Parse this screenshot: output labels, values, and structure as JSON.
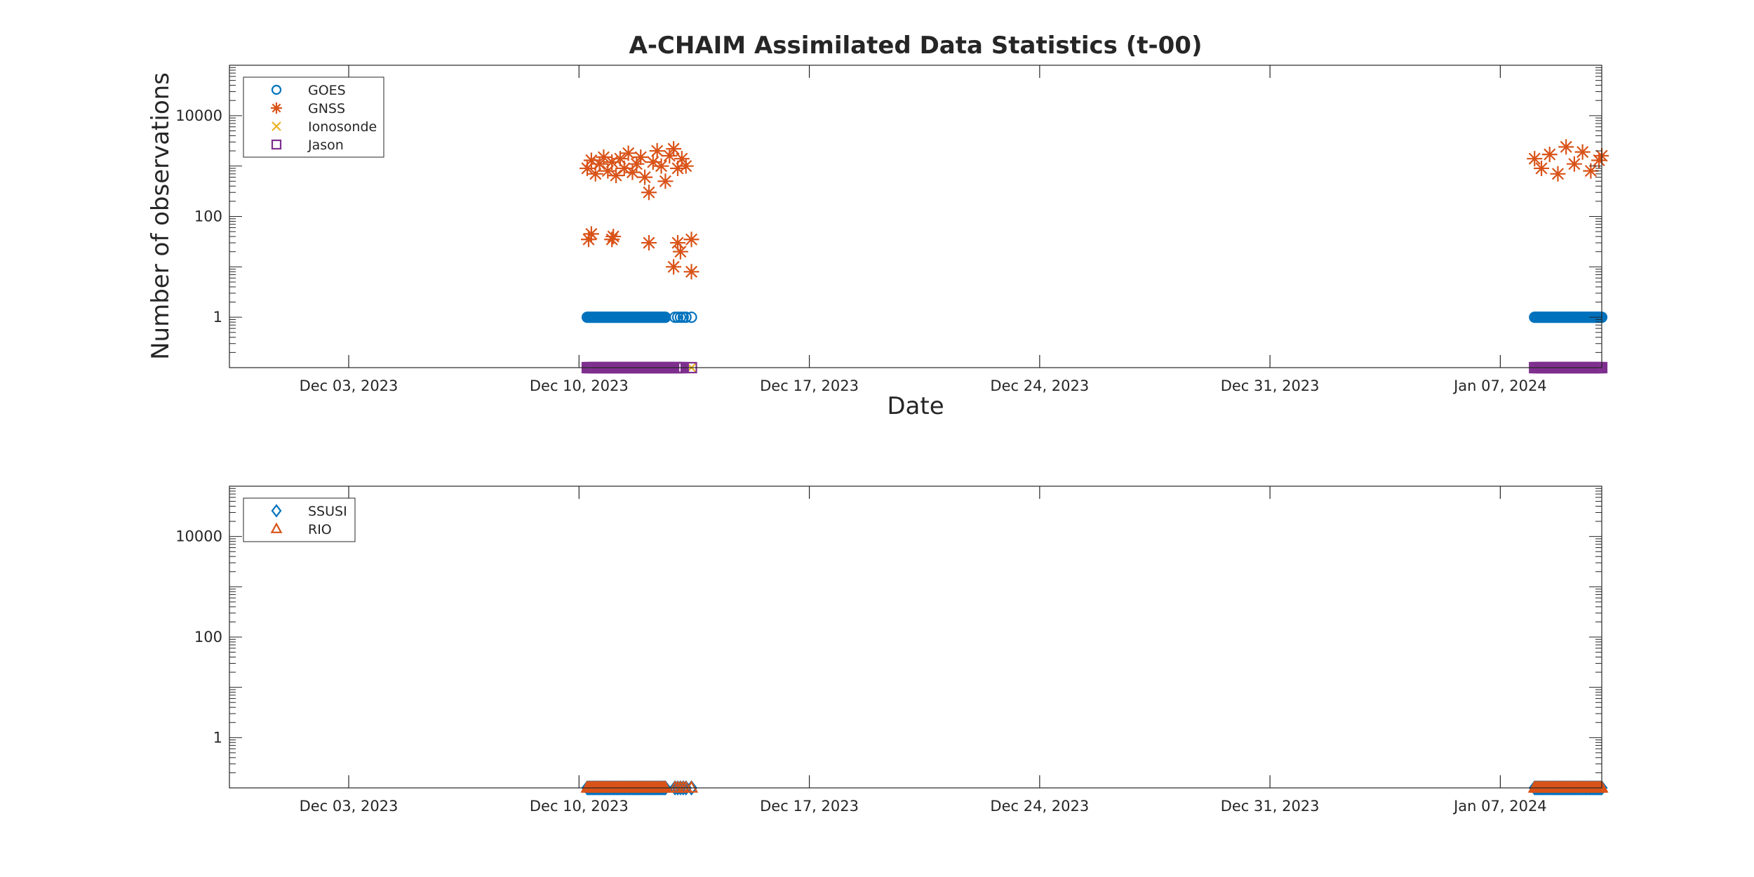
{
  "title": "A-CHAIM Assimilated Data Statistics (t-00)",
  "chart_data": [
    {
      "type": "scatter",
      "panel": "top",
      "xlabel": "Date",
      "ylabel": "Number of observations",
      "yscale": "log",
      "xlim": [
        "2023-11-29T09:00",
        "2024-01-10T02:00"
      ],
      "ylim": [
        0.1,
        100000
      ],
      "yticks": [
        1,
        100,
        10000
      ],
      "ytick_labels": [
        "1",
        "100",
        "10000"
      ],
      "xticks": [
        "2023-12-03",
        "2023-12-10",
        "2023-12-17",
        "2023-12-24",
        "2023-12-31",
        "2024-01-07"
      ],
      "xtick_labels": [
        "Dec 03, 2023",
        "Dec 10, 2023",
        "Dec 17, 2023",
        "Dec 24, 2023",
        "Dec 31, 2023",
        "Jan 07, 2024"
      ],
      "grid": false,
      "legend_position": "top-left",
      "x_range_note": "",
      "series": [
        {
          "name": "GOES",
          "marker": "circle",
          "color": "#0072BD",
          "segments": [
            {
              "start": "2023-12-10T06:00",
              "end": "2023-12-12T15:00",
              "step_hours": 1,
              "value": 1
            },
            {
              "start": "2023-12-12T22:00",
              "end": "2023-12-13T06:00",
              "step_hours": 2,
              "value": 1
            },
            {
              "start": "2023-12-13T10:00",
              "end": "2023-12-13T10:00",
              "step_hours": 1,
              "value": 1
            },
            {
              "start": "2024-01-08T01:00",
              "end": "2024-01-10T02:00",
              "step_hours": 1,
              "value": 1
            }
          ]
        },
        {
          "name": "GNSS",
          "marker": "asterisk",
          "color": "#D95319",
          "points": [
            [
              "2023-12-10T06:00",
              900
            ],
            [
              "2023-12-10T09:00",
              1300
            ],
            [
              "2023-12-10T12:00",
              700
            ],
            [
              "2023-12-10T15:00",
              1100
            ],
            [
              "2023-12-10T18:00",
              1500
            ],
            [
              "2023-12-10T21:00",
              800
            ],
            [
              "2023-12-11T00:00",
              1200
            ],
            [
              "2023-12-11T03:00",
              650
            ],
            [
              "2023-12-11T06:00",
              1400
            ],
            [
              "2023-12-11T09:00",
              900
            ],
            [
              "2023-12-11T12:00",
              1800
            ],
            [
              "2023-12-11T15:00",
              750
            ],
            [
              "2023-12-11T18:00",
              1100
            ],
            [
              "2023-12-11T21:00",
              1500
            ],
            [
              "2023-12-12T00:00",
              600
            ],
            [
              "2023-12-12T03:00",
              300
            ],
            [
              "2023-12-12T06:00",
              1200
            ],
            [
              "2023-12-12T09:00",
              2000
            ],
            [
              "2023-12-12T12:00",
              1000
            ],
            [
              "2023-12-12T15:00",
              500
            ],
            [
              "2023-12-12T18:00",
              1600
            ],
            [
              "2023-12-12T21:00",
              2200
            ],
            [
              "2023-12-13T00:00",
              900
            ],
            [
              "2023-12-13T03:00",
              1400
            ],
            [
              "2023-12-13T06:00",
              1000
            ],
            [
              "2023-12-10T07:00",
              35
            ],
            [
              "2023-12-10T09:00",
              45
            ],
            [
              "2023-12-11T00:00",
              35
            ],
            [
              "2023-12-11T01:00",
              40
            ],
            [
              "2023-12-12T03:00",
              30
            ],
            [
              "2023-12-12T21:00",
              10
            ],
            [
              "2023-12-13T00:00",
              30
            ],
            [
              "2023-12-13T02:00",
              20
            ],
            [
              "2023-12-13T10:00",
              35
            ],
            [
              "2023-12-13T10:00",
              8
            ],
            [
              "2024-01-08T01:00",
              1400
            ],
            [
              "2024-01-08T06:00",
              900
            ],
            [
              "2024-01-08T12:00",
              1700
            ],
            [
              "2024-01-08T18:00",
              700
            ],
            [
              "2024-01-09T00:00",
              2400
            ],
            [
              "2024-01-09T06:00",
              1100
            ],
            [
              "2024-01-09T12:00",
              1900
            ],
            [
              "2024-01-09T18:00",
              800
            ],
            [
              "2024-01-10T00:00",
              1300
            ],
            [
              "2024-01-10T02:00",
              1600
            ]
          ]
        },
        {
          "name": "Ionosonde",
          "marker": "x",
          "color": "#EDB120",
          "points": [
            [
              "2023-12-13T10:00",
              0.1
            ]
          ]
        },
        {
          "name": "Jason",
          "marker": "square",
          "color": "#7E2F8E",
          "segments": [
            {
              "start": "2023-12-10T06:00",
              "end": "2023-12-12T21:00",
              "step_hours": 1,
              "value": 0.1
            },
            {
              "start": "2023-12-12T23:00",
              "end": "2023-12-13T04:00",
              "step_hours": 1,
              "value": 0.1
            },
            {
              "start": "2023-12-13T10:00",
              "end": "2023-12-13T10:00",
              "step_hours": 1,
              "value": 0.1
            },
            {
              "start": "2024-01-08T01:00",
              "end": "2024-01-10T02:00",
              "step_hours": 1,
              "value": 0.1
            }
          ]
        }
      ]
    },
    {
      "type": "scatter",
      "panel": "bottom",
      "xlabel": "",
      "ylabel": "",
      "yscale": "log",
      "xlim": [
        "2023-11-29T09:00",
        "2024-01-10T02:00"
      ],
      "ylim": [
        0.1,
        100000
      ],
      "yticks": [
        1,
        100,
        10000
      ],
      "ytick_labels": [
        "1",
        "100",
        "10000"
      ],
      "xticks": [
        "2023-12-03",
        "2023-12-10",
        "2023-12-17",
        "2023-12-24",
        "2023-12-31",
        "2024-01-07"
      ],
      "xtick_labels": [
        "Dec 03, 2023",
        "Dec 10, 2023",
        "Dec 17, 2023",
        "Dec 24, 2023",
        "Dec 31, 2023",
        "Jan 07, 2024"
      ],
      "grid": false,
      "legend_position": "top-left",
      "series": [
        {
          "name": "SSUSI",
          "marker": "diamond",
          "color": "#0072BD",
          "segments": [
            {
              "start": "2023-12-10T06:00",
              "end": "2023-12-12T15:00",
              "step_hours": 1,
              "value": 0.1
            },
            {
              "start": "2023-12-12T22:00",
              "end": "2023-12-13T06:00",
              "step_hours": 2,
              "value": 0.1
            },
            {
              "start": "2023-12-13T10:00",
              "end": "2023-12-13T10:00",
              "step_hours": 1,
              "value": 0.1
            },
            {
              "start": "2024-01-08T01:00",
              "end": "2024-01-10T02:00",
              "step_hours": 1,
              "value": 0.1
            }
          ]
        },
        {
          "name": "RIO",
          "marker": "triangle",
          "color": "#D95319",
          "segments": [
            {
              "start": "2023-12-10T06:00",
              "end": "2023-12-12T15:00",
              "step_hours": 1,
              "value": 0.1
            },
            {
              "start": "2023-12-12T22:00",
              "end": "2023-12-13T06:00",
              "step_hours": 2,
              "value": 0.1
            },
            {
              "start": "2023-12-13T10:00",
              "end": "2023-12-13T10:00",
              "step_hours": 1,
              "value": 0.1
            },
            {
              "start": "2024-01-08T01:00",
              "end": "2024-01-10T02:00",
              "step_hours": 1,
              "value": 0.1
            }
          ]
        }
      ]
    }
  ]
}
